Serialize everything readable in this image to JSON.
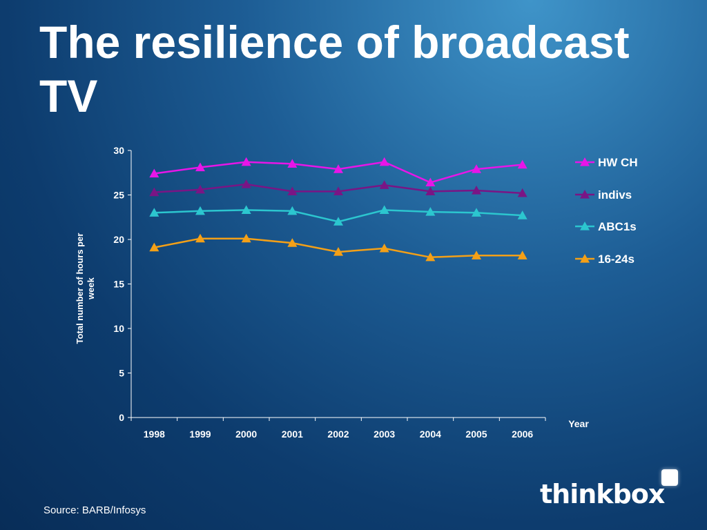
{
  "title": "The resilience of broadcast TV",
  "source": "Source: BARB/Infosys",
  "logo": {
    "text": "thinkbox"
  },
  "colors": {
    "HW CH": "#e815e8",
    "indivs": "#7a1585",
    "ABC1s": "#2cc6cf",
    "16-24s": "#f4a017"
  },
  "chart_data": {
    "type": "line",
    "ylabel": "Total number of hours per week",
    "xlabel": "Year",
    "ylim": [
      0,
      30
    ],
    "yticks": [
      0,
      5,
      10,
      15,
      20,
      25,
      30
    ],
    "grid": false,
    "legend": "right",
    "marker": "triangle",
    "categories": [
      "1998",
      "1999",
      "2000",
      "2001",
      "2002",
      "2003",
      "2004",
      "2005",
      "2006"
    ],
    "series": [
      {
        "name": "HW CH",
        "values": [
          27.4,
          28.1,
          28.7,
          28.5,
          27.9,
          28.7,
          26.4,
          27.9,
          28.4
        ]
      },
      {
        "name": "indivs",
        "values": [
          25.3,
          25.6,
          26.2,
          25.4,
          25.4,
          26.1,
          25.4,
          25.5,
          25.2
        ]
      },
      {
        "name": "ABC1s",
        "values": [
          23.0,
          23.2,
          23.3,
          23.2,
          22.0,
          23.3,
          23.1,
          23.0,
          22.7
        ]
      },
      {
        "name": "16-24s",
        "values": [
          19.1,
          20.1,
          20.1,
          19.6,
          18.6,
          19.0,
          18.0,
          18.2,
          18.2
        ]
      }
    ]
  }
}
